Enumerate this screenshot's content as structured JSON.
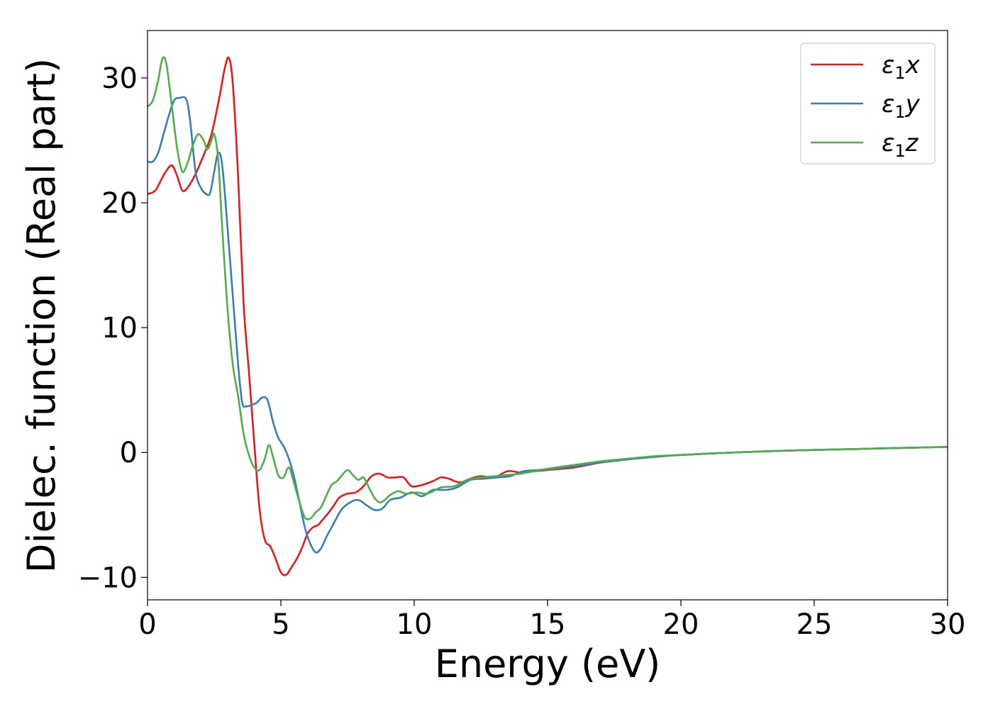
{
  "chart_data": {
    "type": "line",
    "title": "",
    "xlabel": "Energy (eV)",
    "ylabel": "Dielec. function (Real part)",
    "xlim": [
      0,
      30
    ],
    "ylim": [
      -11.8,
      33.8
    ],
    "xticks": [
      0,
      5,
      10,
      15,
      20,
      25,
      30
    ],
    "xtick_labels": [
      "0",
      "5",
      "10",
      "15",
      "20",
      "25",
      "30"
    ],
    "yticks": [
      -10,
      0,
      10,
      20,
      30
    ],
    "ytick_labels": [
      "−10",
      "0",
      "10",
      "20",
      "30"
    ],
    "grid": false,
    "legend_position": "top-right",
    "series": [
      {
        "name": "ε₁x",
        "label_parts": [
          "ε",
          "1",
          "x"
        ],
        "color": "#e41a1c",
        "points": [
          [
            0,
            20.7
          ],
          [
            0.3,
            21.0
          ],
          [
            0.6,
            22.2
          ],
          [
            0.9,
            23.0
          ],
          [
            1.1,
            22.2
          ],
          [
            1.3,
            21.0
          ],
          [
            1.5,
            21.2
          ],
          [
            1.8,
            22.3
          ],
          [
            2.1,
            23.8
          ],
          [
            2.4,
            25.5
          ],
          [
            2.7,
            28.5
          ],
          [
            2.9,
            30.8
          ],
          [
            3.05,
            31.6
          ],
          [
            3.2,
            29.5
          ],
          [
            3.4,
            22.0
          ],
          [
            3.6,
            12.0
          ],
          [
            3.8,
            6.5
          ],
          [
            4.0,
            0.8
          ],
          [
            4.2,
            -4.5
          ],
          [
            4.4,
            -7.0
          ],
          [
            4.6,
            -7.5
          ],
          [
            4.8,
            -8.5
          ],
          [
            5.0,
            -9.6
          ],
          [
            5.2,
            -9.8
          ],
          [
            5.4,
            -9.2
          ],
          [
            5.6,
            -8.5
          ],
          [
            5.8,
            -7.6
          ],
          [
            6.0,
            -6.5
          ],
          [
            6.2,
            -6.0
          ],
          [
            6.4,
            -5.8
          ],
          [
            6.6,
            -5.3
          ],
          [
            6.8,
            -4.8
          ],
          [
            7.0,
            -4.2
          ],
          [
            7.2,
            -3.6
          ],
          [
            7.5,
            -3.3
          ],
          [
            7.8,
            -3.2
          ],
          [
            8.1,
            -2.7
          ],
          [
            8.4,
            -1.9
          ],
          [
            8.7,
            -1.7
          ],
          [
            9.0,
            -2.0
          ],
          [
            9.3,
            -2.0
          ],
          [
            9.6,
            -2.0
          ],
          [
            9.9,
            -2.7
          ],
          [
            10.3,
            -2.6
          ],
          [
            10.7,
            -2.3
          ],
          [
            11.0,
            -2.0
          ],
          [
            11.3,
            -2.1
          ],
          [
            11.7,
            -2.4
          ],
          [
            12.1,
            -2.1
          ],
          [
            12.5,
            -1.9
          ],
          [
            13.0,
            -2.0
          ],
          [
            13.5,
            -1.5
          ],
          [
            14.0,
            -1.6
          ],
          [
            14.5,
            -1.5
          ],
          [
            15.0,
            -1.4
          ],
          [
            16.0,
            -1.2
          ],
          [
            17.0,
            -0.8
          ],
          [
            18.0,
            -0.55
          ],
          [
            19.0,
            -0.35
          ],
          [
            20.0,
            -0.2
          ],
          [
            22.0,
            0.0
          ],
          [
            24.0,
            0.15
          ],
          [
            26.0,
            0.25
          ],
          [
            28.0,
            0.35
          ],
          [
            30.0,
            0.45
          ]
        ]
      },
      {
        "name": "ε₁y",
        "label_parts": [
          "ε",
          "1",
          "y"
        ],
        "color": "#377eb8",
        "points": [
          [
            0,
            23.3
          ],
          [
            0.2,
            23.3
          ],
          [
            0.4,
            24.0
          ],
          [
            0.6,
            25.5
          ],
          [
            0.8,
            27.0
          ],
          [
            1.0,
            28.2
          ],
          [
            1.2,
            28.4
          ],
          [
            1.45,
            28.3
          ],
          [
            1.6,
            26.5
          ],
          [
            1.8,
            22.5
          ],
          [
            2.0,
            21.2
          ],
          [
            2.2,
            20.7
          ],
          [
            2.35,
            20.8
          ],
          [
            2.5,
            22.5
          ],
          [
            2.65,
            24.0
          ],
          [
            2.8,
            23.0
          ],
          [
            3.0,
            18.0
          ],
          [
            3.2,
            12.5
          ],
          [
            3.4,
            7.0
          ],
          [
            3.55,
            4.0
          ],
          [
            3.7,
            3.7
          ],
          [
            3.9,
            3.8
          ],
          [
            4.1,
            4.0
          ],
          [
            4.3,
            4.4
          ],
          [
            4.5,
            4.2
          ],
          [
            4.7,
            2.5
          ],
          [
            4.9,
            1.2
          ],
          [
            5.1,
            0.5
          ],
          [
            5.3,
            -0.5
          ],
          [
            5.5,
            -2.0
          ],
          [
            5.7,
            -4.0
          ],
          [
            5.9,
            -6.0
          ],
          [
            6.1,
            -7.3
          ],
          [
            6.3,
            -8.0
          ],
          [
            6.5,
            -7.7
          ],
          [
            6.7,
            -6.8
          ],
          [
            6.9,
            -6.0
          ],
          [
            7.1,
            -5.2
          ],
          [
            7.3,
            -4.5
          ],
          [
            7.6,
            -4.0
          ],
          [
            7.9,
            -3.8
          ],
          [
            8.2,
            -4.2
          ],
          [
            8.5,
            -4.6
          ],
          [
            8.8,
            -4.5
          ],
          [
            9.1,
            -3.8
          ],
          [
            9.5,
            -3.6
          ],
          [
            9.9,
            -3.2
          ],
          [
            10.3,
            -3.5
          ],
          [
            10.7,
            -3.0
          ],
          [
            11.2,
            -3.0
          ],
          [
            11.6,
            -2.8
          ],
          [
            12.1,
            -2.2
          ],
          [
            12.6,
            -2.1
          ],
          [
            13.1,
            -2.0
          ],
          [
            13.6,
            -1.9
          ],
          [
            14.1,
            -1.5
          ],
          [
            15.0,
            -1.35
          ],
          [
            16.0,
            -1.1
          ],
          [
            17.0,
            -0.8
          ],
          [
            18.0,
            -0.55
          ],
          [
            19.0,
            -0.35
          ],
          [
            20.0,
            -0.2
          ],
          [
            22.0,
            0.0
          ],
          [
            24.0,
            0.15
          ],
          [
            26.0,
            0.25
          ],
          [
            28.0,
            0.35
          ],
          [
            30.0,
            0.45
          ]
        ]
      },
      {
        "name": "ε₁z",
        "label_parts": [
          "ε",
          "1",
          "z"
        ],
        "color": "#4daf4a",
        "points": [
          [
            0,
            27.7
          ],
          [
            0.2,
            28.2
          ],
          [
            0.4,
            29.8
          ],
          [
            0.55,
            31.5
          ],
          [
            0.7,
            31.2
          ],
          [
            0.9,
            28.0
          ],
          [
            1.1,
            24.5
          ],
          [
            1.3,
            22.5
          ],
          [
            1.5,
            23.2
          ],
          [
            1.7,
            24.6
          ],
          [
            1.9,
            25.5
          ],
          [
            2.1,
            25.0
          ],
          [
            2.25,
            24.3
          ],
          [
            2.4,
            25.0
          ],
          [
            2.5,
            25.5
          ],
          [
            2.65,
            23.5
          ],
          [
            2.8,
            18.0
          ],
          [
            3.0,
            11.5
          ],
          [
            3.2,
            7.0
          ],
          [
            3.4,
            4.5
          ],
          [
            3.6,
            1.5
          ],
          [
            3.8,
            -0.2
          ],
          [
            4.0,
            -1.2
          ],
          [
            4.2,
            -1.4
          ],
          [
            4.4,
            -0.5
          ],
          [
            4.55,
            0.6
          ],
          [
            4.7,
            -0.3
          ],
          [
            4.9,
            -1.8
          ],
          [
            5.1,
            -2.0
          ],
          [
            5.3,
            -1.2
          ],
          [
            5.5,
            -2.5
          ],
          [
            5.7,
            -4.0
          ],
          [
            5.9,
            -5.2
          ],
          [
            6.1,
            -5.3
          ],
          [
            6.3,
            -4.8
          ],
          [
            6.5,
            -4.4
          ],
          [
            6.7,
            -3.5
          ],
          [
            6.9,
            -2.6
          ],
          [
            7.1,
            -2.3
          ],
          [
            7.3,
            -1.8
          ],
          [
            7.5,
            -1.4
          ],
          [
            7.7,
            -1.8
          ],
          [
            7.9,
            -2.2
          ],
          [
            8.1,
            -2.0
          ],
          [
            8.3,
            -2.8
          ],
          [
            8.5,
            -3.6
          ],
          [
            8.7,
            -4.0
          ],
          [
            8.9,
            -3.8
          ],
          [
            9.1,
            -3.4
          ],
          [
            9.4,
            -3.1
          ],
          [
            9.7,
            -3.3
          ],
          [
            10.1,
            -3.2
          ],
          [
            10.5,
            -3.3
          ],
          [
            11.0,
            -2.8
          ],
          [
            11.5,
            -2.7
          ],
          [
            12.0,
            -2.2
          ],
          [
            12.5,
            -2.0
          ],
          [
            13.0,
            -1.9
          ],
          [
            13.5,
            -1.8
          ],
          [
            14.0,
            -1.7
          ],
          [
            15.0,
            -1.3
          ],
          [
            16.0,
            -1.0
          ],
          [
            17.0,
            -0.7
          ],
          [
            18.0,
            -0.5
          ],
          [
            19.0,
            -0.3
          ],
          [
            20.0,
            -0.2
          ],
          [
            22.0,
            0.0
          ],
          [
            24.0,
            0.15
          ],
          [
            26.0,
            0.25
          ],
          [
            28.0,
            0.35
          ],
          [
            30.0,
            0.45
          ]
        ]
      }
    ]
  }
}
